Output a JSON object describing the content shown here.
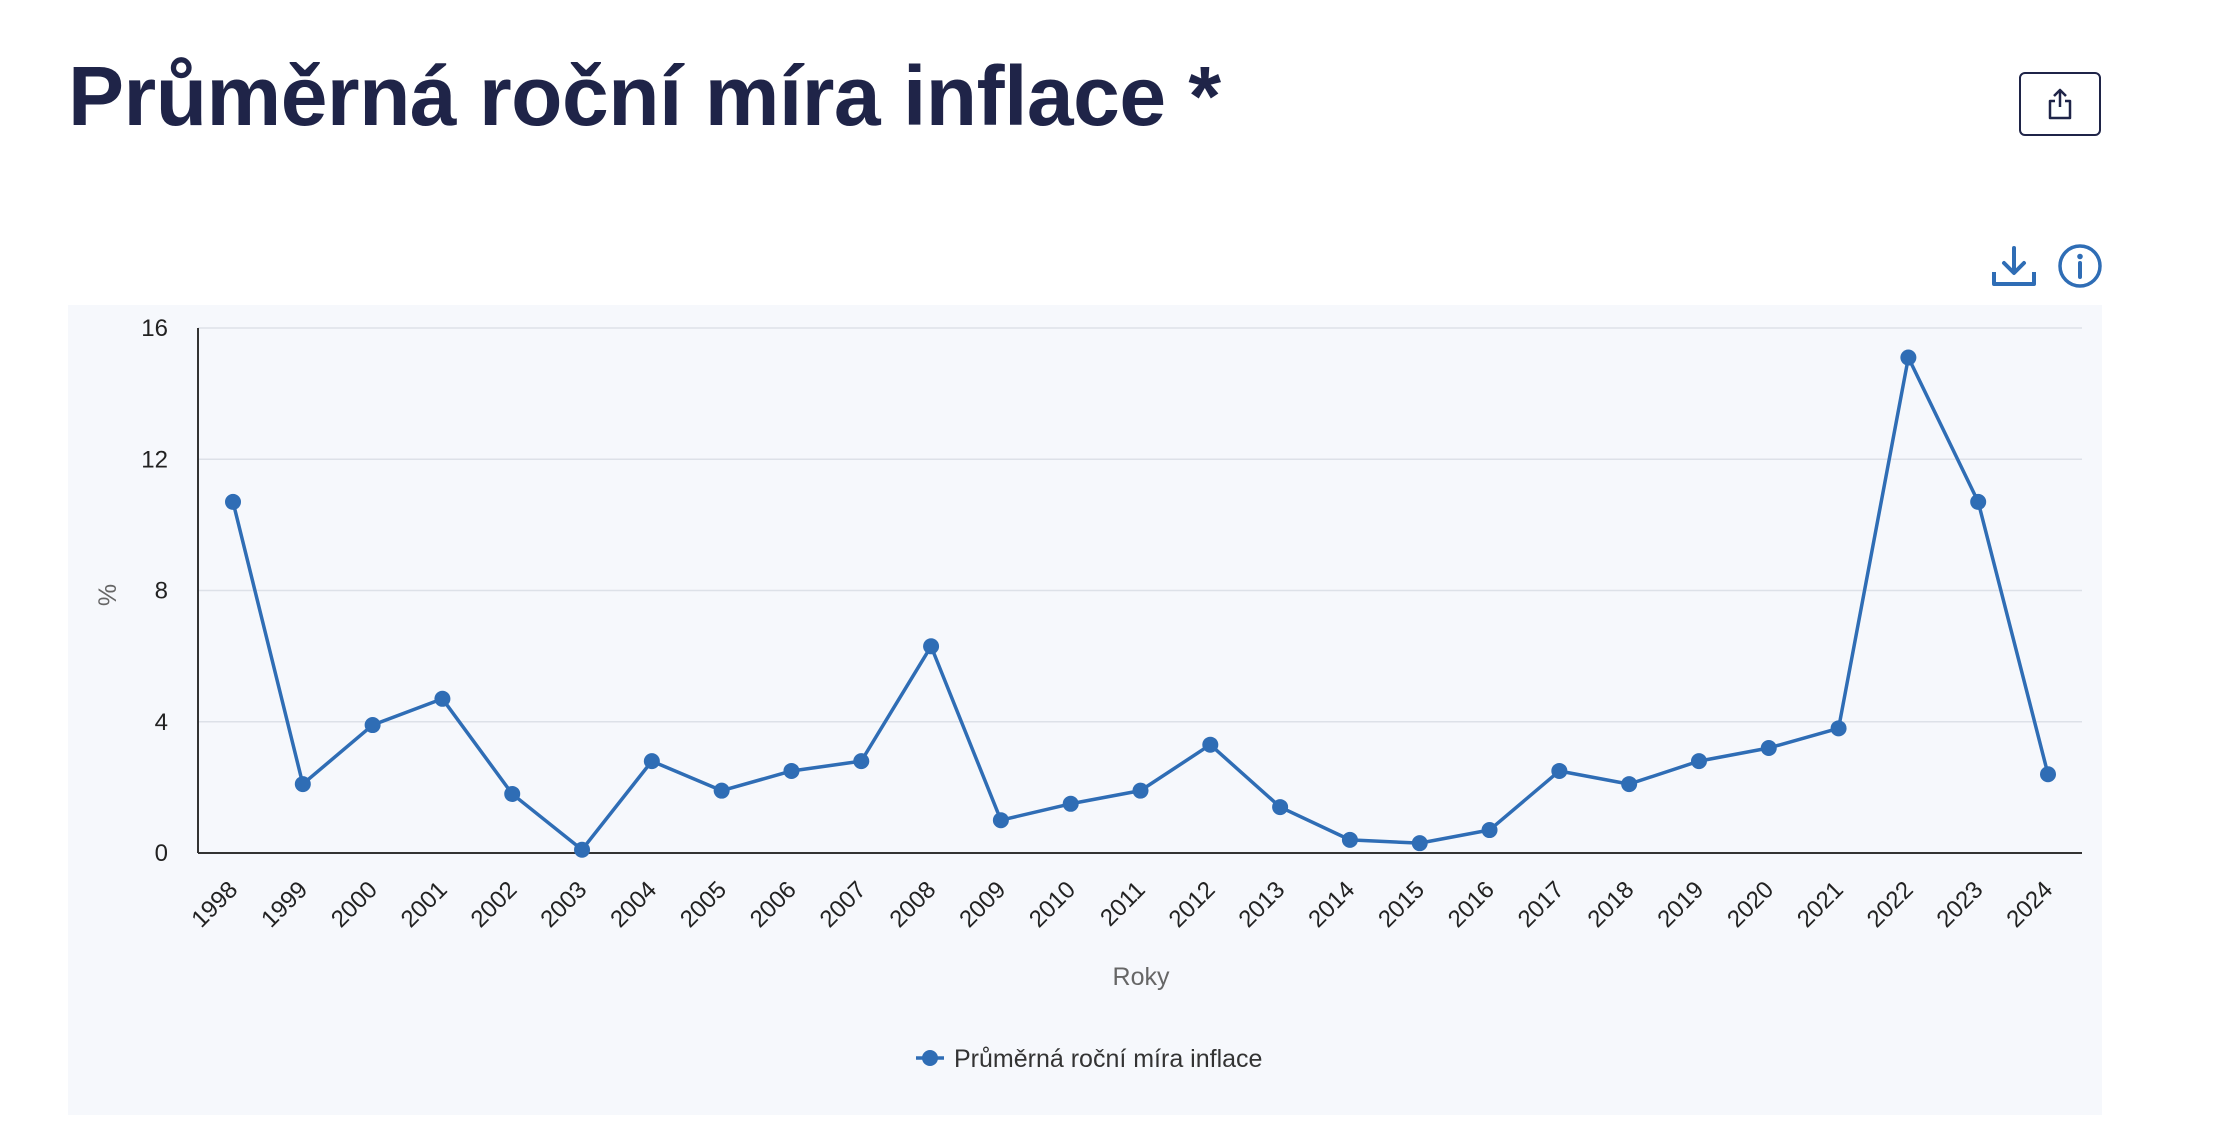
{
  "header": {
    "title": "Průměrná roční míra inflace *",
    "share_icon": "share-icon"
  },
  "toolbar": {
    "download_icon": "download-icon",
    "info_icon": "info-icon"
  },
  "colors": {
    "title": "#1f2448",
    "series": "#2f6db5",
    "icon": "#2f6db5",
    "plot_background": "#f6f8fc",
    "grid": "#dde1e8"
  },
  "chart_data": {
    "type": "line",
    "xlabel": "Roky",
    "ylabel": "%",
    "ylim": [
      0,
      16
    ],
    "yticks": [
      "0",
      "4",
      "8",
      "12",
      "16"
    ],
    "grid": true,
    "legend_position": "bottom-center",
    "categories": [
      "1998",
      "1999",
      "2000",
      "2001",
      "2002",
      "2003",
      "2004",
      "2005",
      "2006",
      "2007",
      "2008",
      "2009",
      "2010",
      "2011",
      "2012",
      "2013",
      "2014",
      "2015",
      "2016",
      "2017",
      "2018",
      "2019",
      "2020",
      "2021",
      "2022",
      "2023",
      "2024"
    ],
    "series": [
      {
        "name": "Průměrná roční míra inflace",
        "values": [
          10.7,
          2.1,
          3.9,
          4.7,
          1.8,
          0.1,
          2.8,
          1.9,
          2.5,
          2.8,
          6.3,
          1.0,
          1.5,
          1.9,
          3.3,
          1.4,
          0.4,
          0.3,
          0.7,
          2.5,
          2.1,
          2.8,
          3.2,
          3.8,
          15.1,
          10.7,
          2.4
        ]
      }
    ]
  }
}
